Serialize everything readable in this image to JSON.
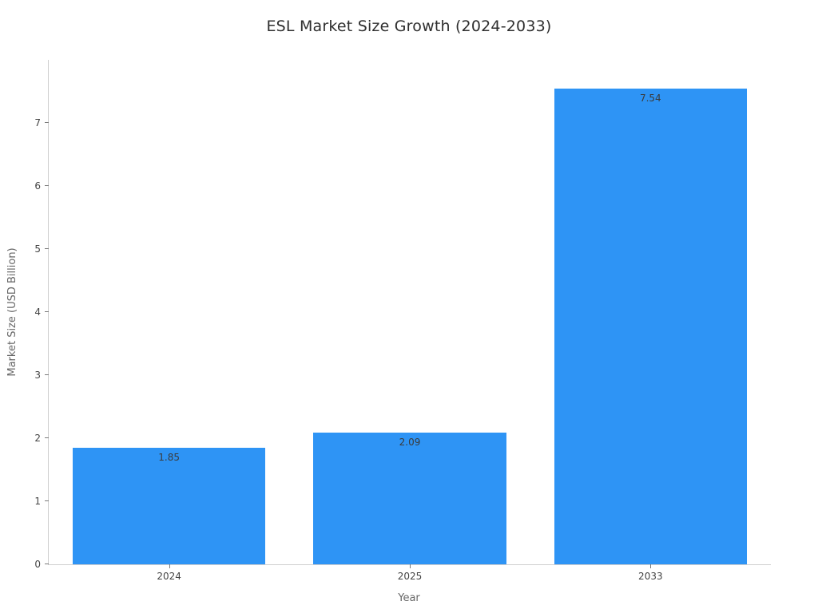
{
  "chart_data": {
    "type": "bar",
    "title": "ESL Market Size Growth (2024-2033)",
    "xlabel": "Year",
    "ylabel": "Market Size (USD Billion)",
    "categories": [
      "2024",
      "2025",
      "2033"
    ],
    "values": [
      1.85,
      2.09,
      7.54
    ],
    "value_labels": [
      "1.85",
      "2.09",
      "7.54"
    ],
    "yticks": [
      "0",
      "1",
      "2",
      "3",
      "4",
      "5",
      "6",
      "7"
    ],
    "ylim": [
      0,
      8
    ],
    "bar_color": "#2E94F5",
    "bar_width_fraction": 0.8,
    "grid": false,
    "legend": false,
    "spines": [
      "left",
      "bottom"
    ]
  }
}
